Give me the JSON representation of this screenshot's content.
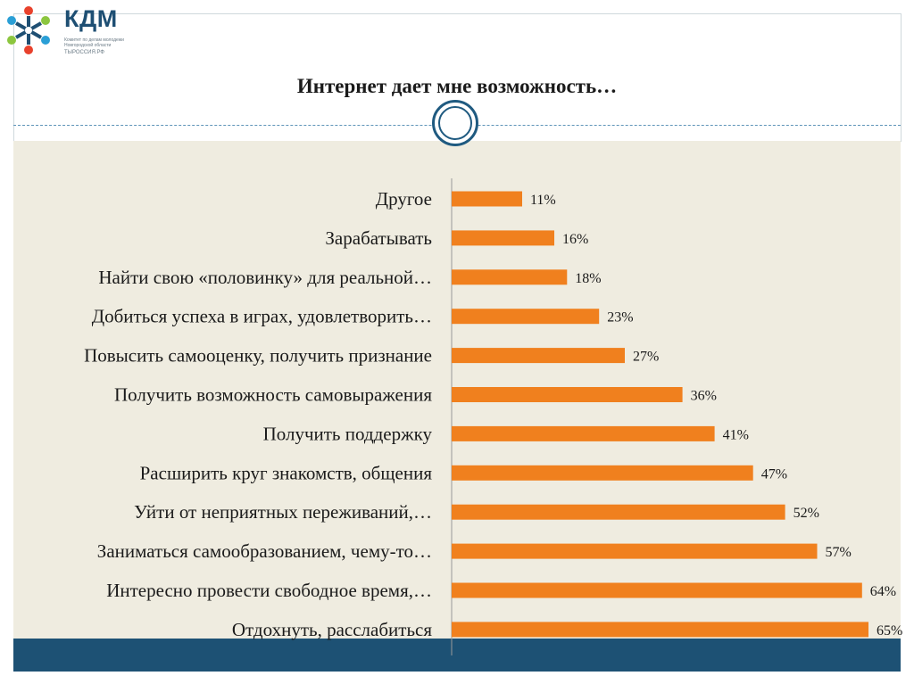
{
  "logo": {
    "name": "КДМ",
    "subtitle": "Комитет по делам молодежи Новгородской области",
    "url": "ТЫРОССИЯ.РФ"
  },
  "colors": {
    "bar": "#f0801e",
    "background_panel": "#efece0",
    "band": "#1d5174",
    "accent": "#1f5a80"
  },
  "chart_data": {
    "type": "bar",
    "orientation": "horizontal",
    "title": "Интернет дает мне возможность…",
    "categories": [
      "Другое",
      "Зарабатывать",
      "Найти свою «половинку» для реальной…",
      "Добиться успеха в играх, удовлетворить…",
      "Повысить самооценку, получить признание",
      "Получить возможность самовыражения",
      "Получить поддержку",
      "Расширить круг знакомств, общения",
      "Уйти от неприятных переживаний,…",
      "Заниматься самообразованием, чему-то…",
      "Интересно провести свободное время,…",
      "Отдохнуть, расслабиться"
    ],
    "values": [
      11,
      16,
      18,
      23,
      27,
      36,
      41,
      47,
      52,
      57,
      64,
      65
    ],
    "value_labels": [
      "11%",
      "16%",
      "18%",
      "23%",
      "27%",
      "36%",
      "41%",
      "47%",
      "52%",
      "57%",
      "64%",
      "65%"
    ],
    "unit": "%",
    "xlim": [
      0,
      65
    ],
    "grid": false,
    "legend": "none"
  }
}
